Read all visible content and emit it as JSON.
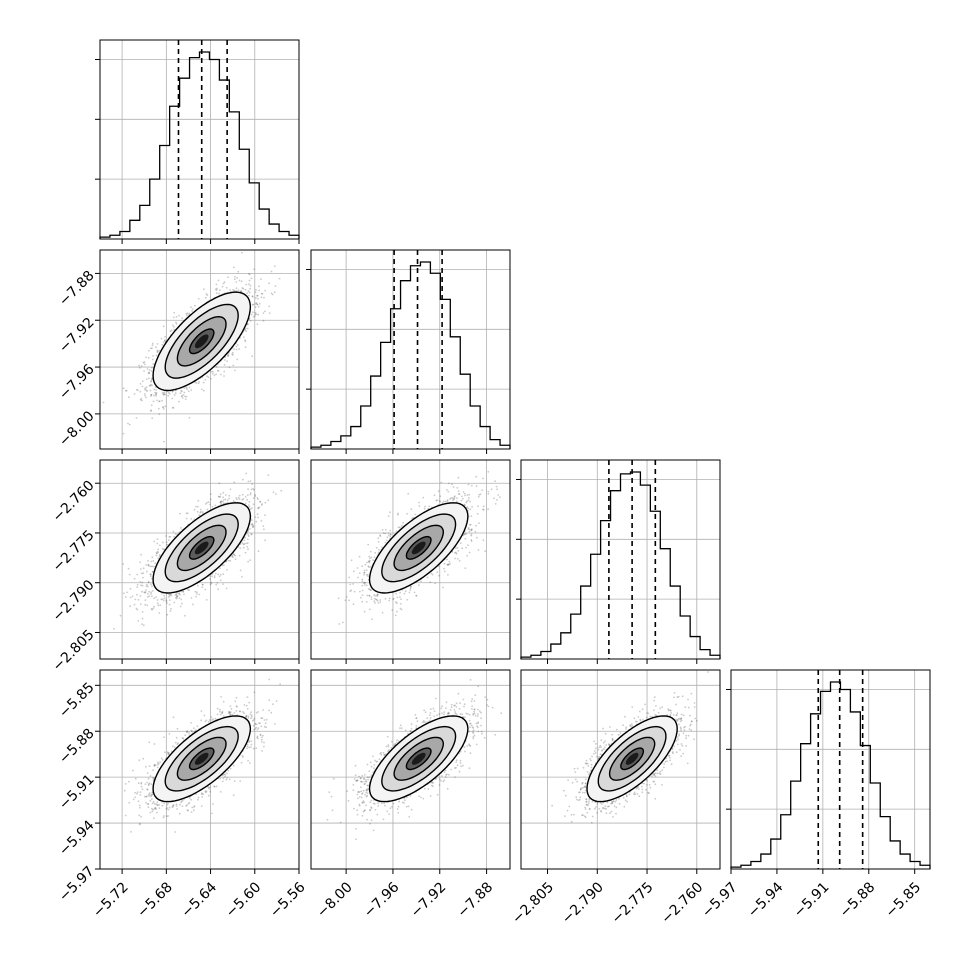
{
  "chart_data": {
    "type": "corner",
    "parameters": [
      {
        "range": [
          -5.74,
          -5.56
        ],
        "ticks": [
          -5.72,
          -5.68,
          -5.64,
          -5.6,
          -5.56
        ],
        "tick_labels": [
          "−5.72",
          "−5.68",
          "−5.64",
          "−5.60",
          "−5.56"
        ],
        "quantiles": [
          -5.669,
          -5.648,
          -5.625
        ],
        "mean": -5.648,
        "sd": 0.022
      },
      {
        "range": [
          -8.03,
          -7.86
        ],
        "ticks": [
          -8.0,
          -7.96,
          -7.92,
          -7.88
        ],
        "tick_labels": [
          "−8.00",
          "−7.96",
          "−7.92",
          "−7.88"
        ],
        "quantiles": [
          -7.959,
          -7.939,
          -7.918
        ],
        "mean": -7.938,
        "sd": 0.021
      },
      {
        "range": [
          -2.813,
          -2.753
        ],
        "ticks": [
          -2.805,
          -2.79,
          -2.775,
          -2.76
        ],
        "tick_labels": [
          "−2.805",
          "−2.790",
          "−2.775",
          "−2.760"
        ],
        "quantiles": [
          -2.7865,
          -2.7795,
          -2.7725
        ],
        "mean": -2.7795,
        "sd": 0.0068
      },
      {
        "range": [
          -5.97,
          -5.84
        ],
        "ticks": [
          -5.97,
          -5.94,
          -5.91,
          -5.88,
          -5.85
        ],
        "tick_labels": [
          "−5.97",
          "−5.94",
          "−5.91",
          "−5.88",
          "−5.85"
        ],
        "quantiles": [
          -5.913,
          -5.899,
          -5.884
        ],
        "mean": -5.898,
        "sd": 0.014
      }
    ],
    "correlation": 0.7,
    "histograms": [
      [
        0.01,
        0.02,
        0.04,
        0.1,
        0.18,
        0.32,
        0.5,
        0.71,
        0.86,
        0.97,
        1.0,
        0.96,
        0.85,
        0.68,
        0.48,
        0.3,
        0.16,
        0.08,
        0.04,
        0.02
      ],
      [
        0.01,
        0.02,
        0.04,
        0.07,
        0.12,
        0.23,
        0.39,
        0.57,
        0.75,
        0.9,
        0.98,
        1.0,
        0.94,
        0.8,
        0.6,
        0.4,
        0.23,
        0.12,
        0.05,
        0.02
      ],
      [
        0.01,
        0.02,
        0.04,
        0.08,
        0.14,
        0.24,
        0.39,
        0.56,
        0.74,
        0.9,
        0.99,
        1.0,
        0.93,
        0.79,
        0.59,
        0.39,
        0.23,
        0.12,
        0.05,
        0.02
      ],
      [
        0.01,
        0.02,
        0.04,
        0.08,
        0.16,
        0.29,
        0.47,
        0.67,
        0.83,
        0.95,
        1.0,
        0.96,
        0.84,
        0.66,
        0.46,
        0.28,
        0.15,
        0.08,
        0.04,
        0.02
      ]
    ],
    "contour_levels_sigma": [
      0.5,
      1.0,
      1.5,
      2.0
    ],
    "grid": true,
    "colors": {
      "line": "#000000",
      "grid": "#b0b0b0",
      "samples": "#444444"
    }
  }
}
